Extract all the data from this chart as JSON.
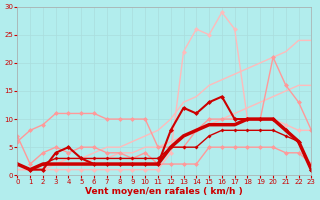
{
  "background_color": "#b2eded",
  "xlabel": "Vent moyen/en rafales ( km/h )",
  "xlim": [
    0,
    23
  ],
  "ylim": [
    0,
    30
  ],
  "yticks": [
    0,
    5,
    10,
    15,
    20,
    25,
    30
  ],
  "xticks": [
    0,
    1,
    2,
    3,
    4,
    5,
    6,
    7,
    8,
    9,
    10,
    11,
    12,
    13,
    14,
    15,
    16,
    17,
    18,
    19,
    20,
    21,
    22,
    23
  ],
  "line_upper_envelope_x": [
    0,
    1,
    2,
    3,
    4,
    5,
    6,
    7,
    8,
    9,
    10,
    11,
    12,
    13,
    14,
    15,
    16,
    17,
    18,
    19,
    20,
    21,
    22,
    23
  ],
  "line_upper_envelope_y": [
    1,
    1,
    2,
    2,
    3,
    3,
    4,
    5,
    5,
    6,
    7,
    8,
    10,
    13,
    14,
    16,
    17,
    18,
    19,
    20,
    21,
    22,
    24,
    24
  ],
  "line_upper_envelope_color": "#ffbbbb",
  "line_upper_envelope_lw": 1.0,
  "line_lower_envelope_x": [
    0,
    1,
    2,
    3,
    4,
    5,
    6,
    7,
    8,
    9,
    10,
    11,
    12,
    13,
    14,
    15,
    16,
    17,
    18,
    19,
    20,
    21,
    22,
    23
  ],
  "line_lower_envelope_y": [
    1,
    1,
    1,
    2,
    2,
    2,
    3,
    3,
    4,
    4,
    5,
    5,
    6,
    7,
    8,
    9,
    10,
    11,
    12,
    13,
    14,
    15,
    16,
    16
  ],
  "line_lower_envelope_color": "#ffbbbb",
  "line_lower_envelope_lw": 1.0,
  "line_zigzag_x": [
    0,
    1,
    2,
    3,
    4,
    5,
    6,
    7,
    8,
    9,
    10,
    11,
    12,
    13,
    14,
    15,
    16,
    17,
    18,
    19,
    20,
    21,
    22,
    23
  ],
  "line_zigzag_y": [
    6,
    8,
    9,
    11,
    11,
    11,
    11,
    10,
    10,
    10,
    10,
    5,
    5,
    5,
    8,
    10,
    10,
    10,
    10,
    10,
    21,
    16,
    13,
    8
  ],
  "line_zigzag_color": "#ff9999",
  "line_zigzag_lw": 1.0,
  "line_zigzag2_x": [
    0,
    1,
    2,
    3,
    4,
    5,
    6,
    7,
    8,
    9,
    10,
    11,
    12,
    13,
    14,
    15,
    16,
    17,
    18,
    19,
    20,
    21,
    22,
    23
  ],
  "line_zigzag2_y": [
    7,
    2,
    4,
    5,
    4,
    5,
    5,
    4,
    4,
    3,
    4,
    2,
    2,
    2,
    2,
    5,
    5,
    5,
    5,
    5,
    5,
    4,
    4,
    2
  ],
  "line_zigzag2_color": "#ff9999",
  "line_zigzag2_lw": 1.0,
  "line_spike_x": [
    0,
    1,
    2,
    3,
    4,
    5,
    6,
    7,
    8,
    9,
    10,
    11,
    12,
    13,
    14,
    15,
    16,
    17,
    18,
    19,
    20,
    21,
    22,
    23
  ],
  "line_spike_y": [
    2,
    1,
    1,
    1,
    1,
    1,
    1,
    1,
    1,
    1,
    1,
    1,
    4,
    22,
    26,
    25,
    29,
    26,
    10,
    10,
    10,
    9,
    8,
    8
  ],
  "line_spike_color": "#ffbbbb",
  "line_spike_lw": 1.0,
  "line_dark1_x": [
    0,
    1,
    2,
    3,
    4,
    5,
    6,
    7,
    8,
    9,
    10,
    11,
    12,
    13,
    14,
    15,
    16,
    17,
    18,
    19,
    20,
    21,
    22,
    23
  ],
  "line_dark1_y": [
    2,
    1,
    1,
    4,
    5,
    3,
    2,
    2,
    2,
    2,
    2,
    2,
    8,
    12,
    11,
    13,
    14,
    10,
    10,
    10,
    10,
    8,
    6,
    1
  ],
  "line_dark1_color": "#cc0000",
  "line_dark1_lw": 1.5,
  "line_dark2_x": [
    0,
    1,
    2,
    3,
    4,
    5,
    6,
    7,
    8,
    9,
    10,
    11,
    12,
    13,
    14,
    15,
    16,
    17,
    18,
    19,
    20,
    21,
    22,
    23
  ],
  "line_dark2_y": [
    2,
    1,
    2,
    2,
    2,
    2,
    2,
    2,
    2,
    2,
    2,
    2,
    5,
    7,
    8,
    9,
    9,
    9,
    10,
    10,
    10,
    8,
    6,
    1
  ],
  "line_dark2_color": "#cc0000",
  "line_dark2_lw": 2.5,
  "line_dark3_x": [
    0,
    1,
    2,
    3,
    4,
    5,
    6,
    7,
    8,
    9,
    10,
    11,
    12,
    13,
    14,
    15,
    16,
    17,
    18,
    19,
    20,
    21,
    22,
    23
  ],
  "line_dark3_y": [
    2,
    1,
    2,
    3,
    3,
    3,
    3,
    3,
    3,
    3,
    3,
    3,
    5,
    5,
    5,
    7,
    8,
    8,
    8,
    8,
    8,
    7,
    6,
    1
  ],
  "line_dark3_color": "#cc0000",
  "line_dark3_lw": 1.0
}
